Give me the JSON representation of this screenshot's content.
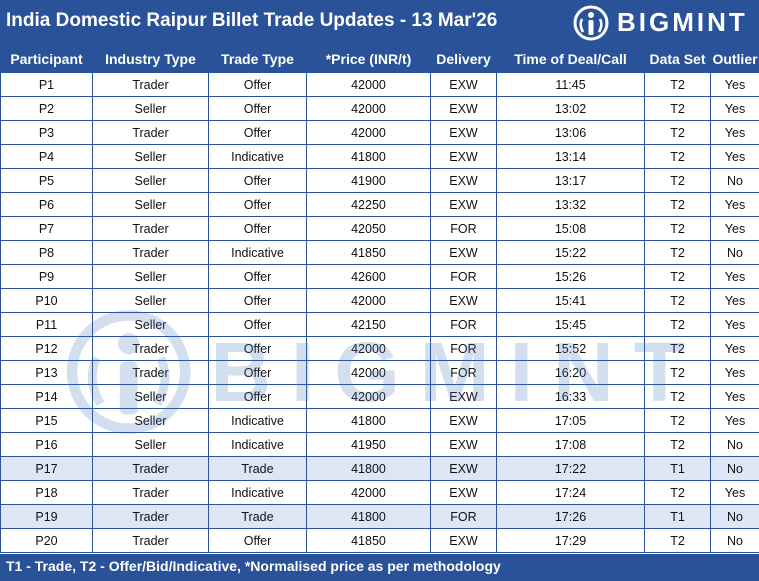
{
  "header": {
    "title": "India Domestic Raipur Billet Trade Updates - 13 Mar'26",
    "logo_text": "BIGMINT"
  },
  "table": {
    "columns": [
      "Participant",
      "Industry Type",
      "Trade Type",
      "*Price (INR/t)",
      "Delivery",
      "Time of Deal/Call",
      "Data Set",
      "Outlier"
    ],
    "rows": [
      [
        "P1",
        "Trader",
        "Offer",
        "42000",
        "EXW",
        "11:45",
        "T2",
        "Yes"
      ],
      [
        "P2",
        "Seller",
        "Offer",
        "42000",
        "EXW",
        "13:02",
        "T2",
        "Yes"
      ],
      [
        "P3",
        "Trader",
        "Offer",
        "42000",
        "EXW",
        "13:06",
        "T2",
        "Yes"
      ],
      [
        "P4",
        "Seller",
        "Indicative",
        "41800",
        "EXW",
        "13:14",
        "T2",
        "Yes"
      ],
      [
        "P5",
        "Seller",
        "Offer",
        "41900",
        "EXW",
        "13:17",
        "T2",
        "No"
      ],
      [
        "P6",
        "Seller",
        "Offer",
        "42250",
        "EXW",
        "13:32",
        "T2",
        "Yes"
      ],
      [
        "P7",
        "Trader",
        "Offer",
        "42050",
        "FOR",
        "15:08",
        "T2",
        "Yes"
      ],
      [
        "P8",
        "Trader",
        "Indicative",
        "41850",
        "EXW",
        "15:22",
        "T2",
        "No"
      ],
      [
        "P9",
        "Seller",
        "Offer",
        "42600",
        "FOR",
        "15:26",
        "T2",
        "Yes"
      ],
      [
        "P10",
        "Seller",
        "Offer",
        "42000",
        "EXW",
        "15:41",
        "T2",
        "Yes"
      ],
      [
        "P11",
        "Seller",
        "Offer",
        "42150",
        "FOR",
        "15:45",
        "T2",
        "Yes"
      ],
      [
        "P12",
        "Trader",
        "Offer",
        "42000",
        "FOR",
        "15:52",
        "T2",
        "Yes"
      ],
      [
        "P13",
        "Trader",
        "Offer",
        "42000",
        "FOR",
        "16:20",
        "T2",
        "Yes"
      ],
      [
        "P14",
        "Seller",
        "Offer",
        "42000",
        "EXW",
        "16:33",
        "T2",
        "Yes"
      ],
      [
        "P15",
        "Seller",
        "Indicative",
        "41800",
        "EXW",
        "17:05",
        "T2",
        "Yes"
      ],
      [
        "P16",
        "Seller",
        "Indicative",
        "41950",
        "EXW",
        "17:08",
        "T2",
        "No"
      ],
      [
        "P17",
        "Trader",
        "Trade",
        "41800",
        "EXW",
        "17:22",
        "T1",
        "No"
      ],
      [
        "P18",
        "Trader",
        "Indicative",
        "42000",
        "EXW",
        "17:24",
        "T2",
        "Yes"
      ],
      [
        "P19",
        "Trader",
        "Trade",
        "41800",
        "FOR",
        "17:26",
        "T1",
        "No"
      ],
      [
        "P20",
        "Trader",
        "Offer",
        "41850",
        "EXW",
        "17:29",
        "T2",
        "No"
      ]
    ],
    "highlighted_data_set": "T1"
  },
  "footer": {
    "note": "T1 - Trade, T2 - Offer/Bid/Indicative, *Normalised price as per methodology"
  },
  "colors": {
    "brand_blue": "#2a5298",
    "highlight_row": "#dce6f4"
  }
}
